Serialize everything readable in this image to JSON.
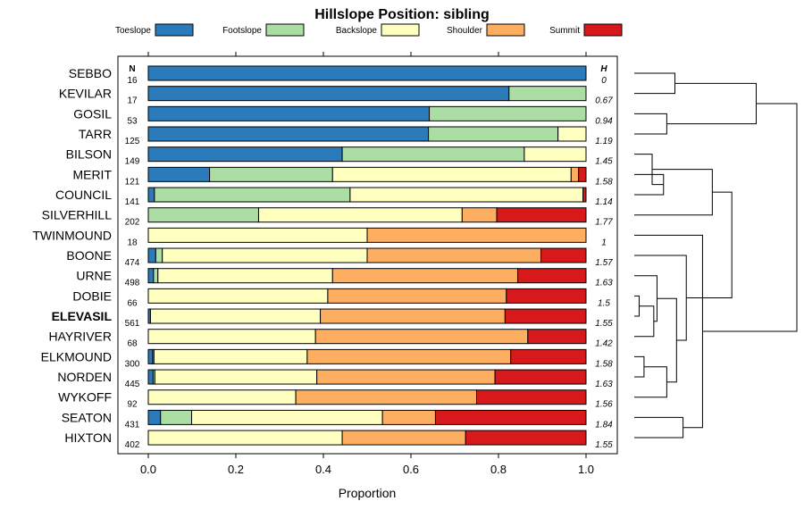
{
  "chart_data": {
    "type": "bar",
    "orientation": "horizontal",
    "stacked": true,
    "title": "Hillslope Position: sibling",
    "xlabel": "Proportion",
    "ylabel": "",
    "xlim": [
      0,
      1
    ],
    "xticks": [
      "0.0",
      "0.2",
      "0.4",
      "0.6",
      "0.8",
      "1.0"
    ],
    "n_header": "N",
    "h_header": "H",
    "highlight": "ELEVASIL",
    "legend": [
      {
        "name": "Toeslope",
        "color": "#2b7bba"
      },
      {
        "name": "Footslope",
        "color": "#abdda4"
      },
      {
        "name": "Backslope",
        "color": "#ffffbf"
      },
      {
        "name": "Shoulder",
        "color": "#fdae61"
      },
      {
        "name": "Summit",
        "color": "#d7191c"
      }
    ],
    "categories": [
      "SEBBO",
      "KEVILAR",
      "GOSIL",
      "TARR",
      "BILSON",
      "MERIT",
      "COUNCIL",
      "SILVERHILL",
      "TWINMOUND",
      "BOONE",
      "URNE",
      "DOBIE",
      "ELEVASIL",
      "HAYRIVER",
      "ELKMOUND",
      "NORDEN",
      "WYKOFF",
      "SEATON",
      "HIXTON"
    ],
    "n": [
      "16",
      "17",
      "53",
      "125",
      "149",
      "121",
      "141",
      "202",
      "18",
      "474",
      "498",
      "66",
      "561",
      "68",
      "300",
      "445",
      "92",
      "431",
      "402"
    ],
    "h": [
      "0",
      "0.67",
      "0.94",
      "1.19",
      "1.45",
      "1.58",
      "1.14",
      "1.77",
      "1",
      "1.57",
      "1.63",
      "1.5",
      "1.55",
      "1.42",
      "1.58",
      "1.63",
      "1.56",
      "1.84",
      "1.55"
    ],
    "series": [
      {
        "name": "Toeslope",
        "values": [
          1.0,
          0.824,
          0.642,
          0.64,
          0.443,
          0.14,
          0.014,
          0,
          0,
          0.017,
          0.012,
          0,
          0.005,
          0,
          0.01,
          0.011,
          0,
          0.028,
          0
        ]
      },
      {
        "name": "Footslope",
        "values": [
          0,
          0.176,
          0.358,
          0.296,
          0.416,
          0.281,
          0.447,
          0.252,
          0,
          0.015,
          0.01,
          0,
          0,
          0,
          0.003,
          0.004,
          0,
          0.071,
          0
        ]
      },
      {
        "name": "Backslope",
        "values": [
          0,
          0,
          0,
          0.064,
          0.141,
          0.545,
          0.532,
          0.465,
          0.5,
          0.468,
          0.399,
          0.41,
          0.388,
          0.382,
          0.35,
          0.37,
          0.337,
          0.436,
          0.443
        ]
      },
      {
        "name": "Shoulder",
        "values": [
          0,
          0,
          0,
          0,
          0,
          0.017,
          0,
          0.079,
          0.5,
          0.397,
          0.423,
          0.408,
          0.422,
          0.485,
          0.465,
          0.407,
          0.413,
          0.121,
          0.282
        ]
      },
      {
        "name": "Summit",
        "values": [
          0,
          0,
          0,
          0,
          0,
          0.017,
          0.007,
          0.204,
          0,
          0.103,
          0.156,
          0.182,
          0.185,
          0.133,
          0.172,
          0.208,
          0.25,
          0.344,
          0.275
        ]
      }
    ],
    "dendrogram": {
      "merges": [
        [
          0,
          1,
          0.25
        ],
        [
          2,
          3,
          0.2
        ],
        [
          19,
          20,
          0.75
        ],
        [
          5,
          6,
          0.18
        ],
        [
          22,
          4,
          0.11
        ],
        [
          11,
          12,
          0.03
        ],
        [
          24,
          13,
          0.12
        ],
        [
          25,
          10,
          0.14
        ],
        [
          14,
          15,
          0.06
        ],
        [
          27,
          16,
          0.2
        ],
        [
          26,
          28,
          0.26
        ],
        [
          17,
          18,
          0.3
        ],
        [
          29,
          9,
          0.32
        ],
        [
          30,
          8,
          0.42
        ],
        [
          23,
          7,
          0.48
        ],
        [
          33,
          31,
          0.6
        ],
        [
          21,
          32,
          1.0
        ]
      ],
      "order": [
        "SEBBO",
        "KEVILAR",
        "GOSIL",
        "TARR",
        "BILSON",
        "MERIT",
        "COUNCIL",
        "SILVERHILL",
        "TWINMOUND",
        "BOONE",
        "URNE",
        "DOBIE",
        "ELEVASIL",
        "HAYRIVER",
        "ELKMOUND",
        "NORDEN",
        "WYKOFF",
        "SEATON",
        "HIXTON"
      ]
    }
  }
}
